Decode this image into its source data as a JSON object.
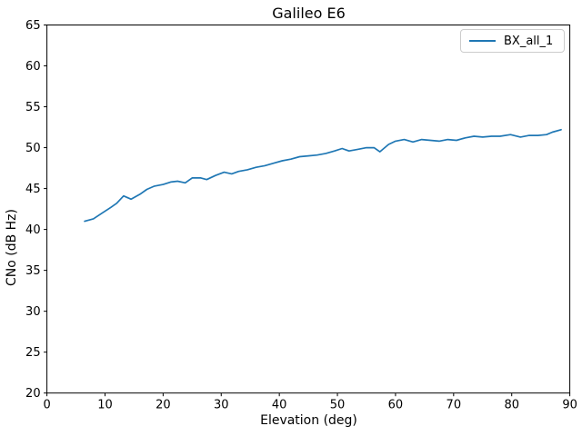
{
  "window": {
    "background": "#ffffff"
  },
  "chart_data": {
    "type": "line",
    "title": "Galileo E6",
    "xlabel": "Elevation (deg)",
    "ylabel": "CNo (dB Hz)",
    "xlim": [
      0,
      90
    ],
    "ylim": [
      20,
      65
    ],
    "xticks": [
      0,
      10,
      20,
      30,
      40,
      50,
      60,
      70,
      80,
      90
    ],
    "yticks": [
      20,
      25,
      30,
      35,
      40,
      45,
      50,
      55,
      60,
      65
    ],
    "grid": false,
    "legend": {
      "position": "upper right",
      "entries": [
        {
          "label": "BX_all_1",
          "color": "#1f77b4"
        }
      ]
    },
    "axis_color": "#000000",
    "text_color": "#000000",
    "series": [
      {
        "name": "BX_all_1",
        "color": "#1f77b4",
        "points": [
          [
            6.5,
            41.0
          ],
          [
            8,
            41.3
          ],
          [
            9.5,
            42.0
          ],
          [
            11,
            42.7
          ],
          [
            12,
            43.2
          ],
          [
            13.2,
            44.1
          ],
          [
            14.5,
            43.7
          ],
          [
            16,
            44.3
          ],
          [
            17.2,
            44.9
          ],
          [
            18.5,
            45.3
          ],
          [
            20,
            45.5
          ],
          [
            21.3,
            45.8
          ],
          [
            22.5,
            45.9
          ],
          [
            23.8,
            45.7
          ],
          [
            25,
            46.3
          ],
          [
            26.5,
            46.3
          ],
          [
            27.5,
            46.1
          ],
          [
            29,
            46.6
          ],
          [
            30.5,
            47.0
          ],
          [
            31.8,
            46.8
          ],
          [
            33,
            47.1
          ],
          [
            34.5,
            47.3
          ],
          [
            36,
            47.6
          ],
          [
            37.5,
            47.8
          ],
          [
            39,
            48.1
          ],
          [
            40.5,
            48.4
          ],
          [
            42,
            48.6
          ],
          [
            43.5,
            48.9
          ],
          [
            45,
            49.0
          ],
          [
            46.5,
            49.1
          ],
          [
            48,
            49.3
          ],
          [
            49.5,
            49.6
          ],
          [
            50.8,
            49.9
          ],
          [
            52,
            49.6
          ],
          [
            53.5,
            49.8
          ],
          [
            55,
            50.0
          ],
          [
            56.3,
            50.0
          ],
          [
            57.3,
            49.5
          ],
          [
            58.8,
            50.4
          ],
          [
            60,
            50.8
          ],
          [
            61.5,
            51.0
          ],
          [
            63,
            50.7
          ],
          [
            64.5,
            51.0
          ],
          [
            66,
            50.9
          ],
          [
            67.5,
            50.8
          ],
          [
            69,
            51.0
          ],
          [
            70.5,
            50.9
          ],
          [
            72,
            51.2
          ],
          [
            73.5,
            51.4
          ],
          [
            75,
            51.3
          ],
          [
            76.5,
            51.4
          ],
          [
            78,
            51.4
          ],
          [
            79.8,
            51.6
          ],
          [
            81.5,
            51.3
          ],
          [
            83,
            51.5
          ],
          [
            84.5,
            51.5
          ],
          [
            86,
            51.6
          ],
          [
            87,
            51.9
          ],
          [
            88.5,
            52.2
          ]
        ]
      }
    ]
  }
}
